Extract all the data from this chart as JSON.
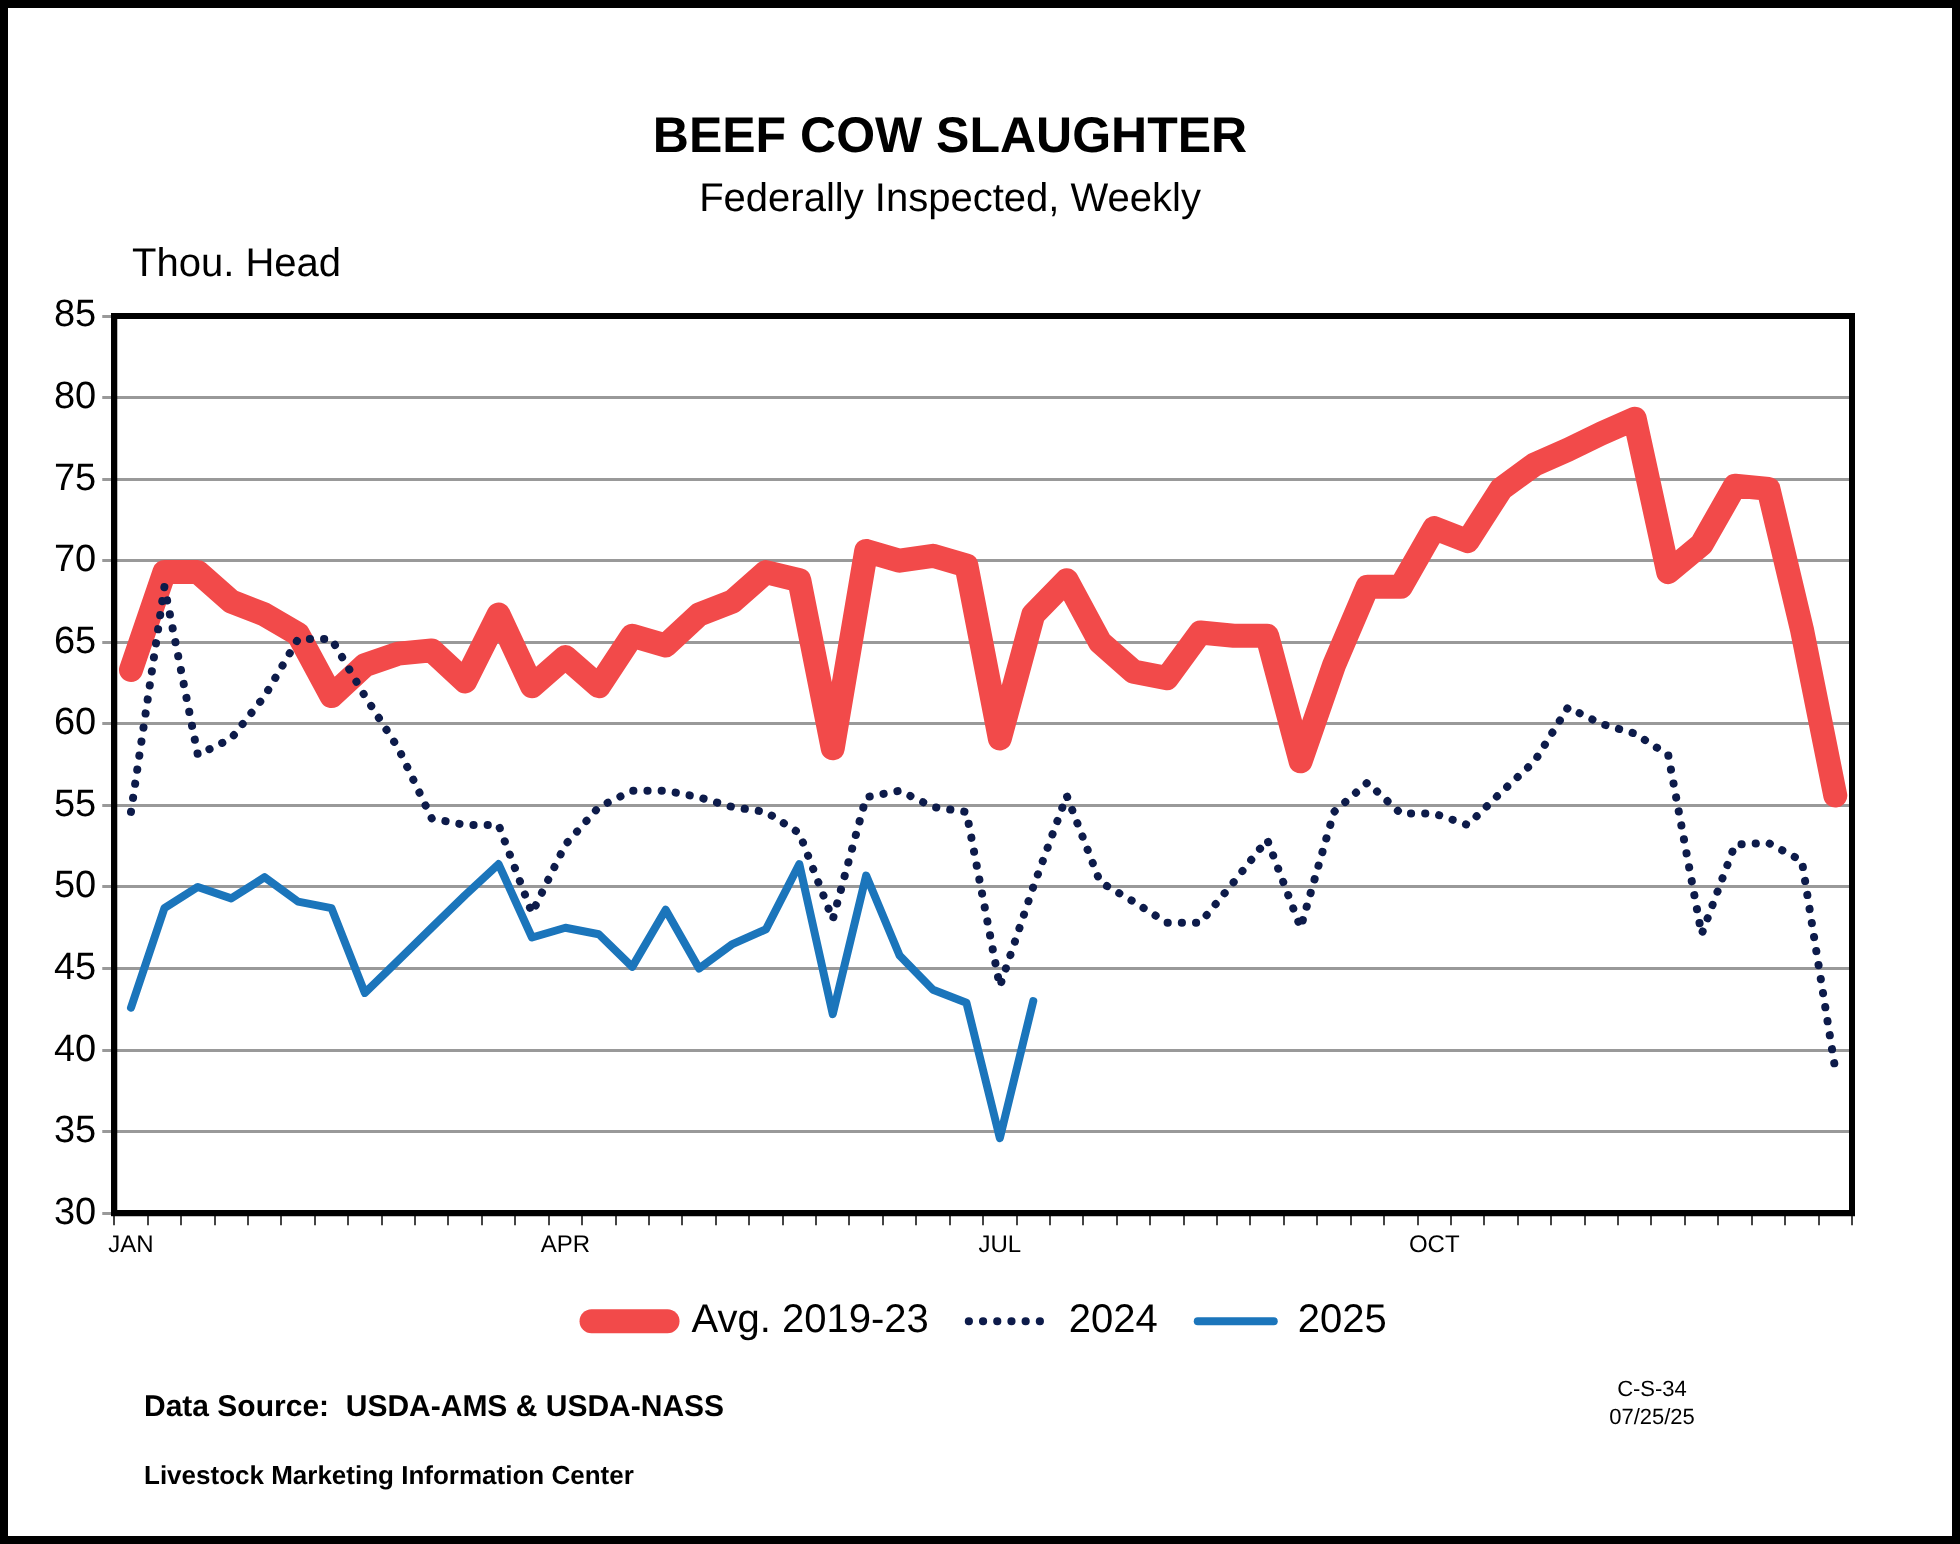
{
  "chart_data": {
    "type": "line",
    "title": "BEEF COW SLAUGHTER",
    "subtitle": "Federally Inspected, Weekly",
    "ylabel": "Thou. Head",
    "categories": [
      "JAN",
      null,
      null,
      null,
      null,
      null,
      null,
      null,
      null,
      null,
      null,
      null,
      null,
      "APR",
      null,
      null,
      null,
      null,
      null,
      null,
      null,
      null,
      null,
      null,
      null,
      null,
      "JUL",
      null,
      null,
      null,
      null,
      null,
      null,
      null,
      null,
      null,
      null,
      null,
      null,
      "OCT",
      null,
      null,
      null,
      null,
      null,
      null,
      null,
      null,
      null,
      null,
      null,
      null
    ],
    "series": [
      {
        "name": "Avg. 2019-23",
        "color": "#f24a4a",
        "line_style": "solid",
        "values": [
          63.3,
          69.3,
          69.3,
          67.5,
          66.7,
          65.5,
          61.7,
          63.6,
          64.3,
          64.5,
          62.6,
          66.7,
          62.3,
          64.1,
          62.3,
          65.4,
          64.8,
          66.7,
          67.5,
          69.3,
          68.8,
          58.5,
          70.6,
          70.0,
          70.3,
          69.7,
          59.1,
          66.7,
          68.8,
          65.0,
          63.2,
          62.8,
          65.6,
          65.4,
          65.4,
          57.7,
          63.6,
          68.4,
          68.4,
          72.0,
          71.2,
          74.4,
          75.9,
          76.8,
          77.8,
          78.7,
          69.3,
          71.0,
          74.6,
          74.4,
          65.8,
          55.6
        ]
      },
      {
        "name": "2024",
        "color": "#0d1b4a",
        "line_style": "dotted",
        "values": [
          54.6,
          68.4,
          58.1,
          59.1,
          61.7,
          65.2,
          65.2,
          61.7,
          58.5,
          54.2,
          53.8,
          53.8,
          48.4,
          52.6,
          54.9,
          55.9,
          55.9,
          55.5,
          54.9,
          54.6,
          53.3,
          48.0,
          55.5,
          55.9,
          54.9,
          54.6,
          43.9,
          50.0,
          55.6,
          50.3,
          49.1,
          47.8,
          47.8,
          50.3,
          52.9,
          47.5,
          54.6,
          56.4,
          54.5,
          54.5,
          53.8,
          55.8,
          57.7,
          61.0,
          60.0,
          59.4,
          58.1,
          47.1,
          52.6,
          52.7,
          51.6,
          38.8
        ]
      },
      {
        "name": "2025",
        "color": "#1b75bb",
        "line_style": "solid",
        "values": [
          42.6,
          48.7,
          50.0,
          49.3,
          50.6,
          49.1,
          48.7,
          43.5,
          45.5,
          47.5,
          49.5,
          51.4,
          46.9,
          47.5,
          47.1,
          45.1,
          48.6,
          45.0,
          46.5,
          47.4,
          51.4,
          42.2,
          50.7,
          45.8,
          43.7,
          42.9,
          34.6,
          43.0,
          null,
          null,
          null,
          null,
          null,
          null,
          null,
          null,
          null,
          null,
          null,
          null,
          null,
          null,
          null,
          null,
          null,
          null,
          null,
          null,
          null,
          null,
          null,
          null
        ]
      }
    ],
    "ylim": [
      30,
      85
    ],
    "yticks": [
      30,
      35,
      40,
      45,
      50,
      55,
      60,
      65,
      70,
      75,
      80,
      85
    ],
    "grid": "y",
    "legend": "bottom",
    "marker": "none",
    "annotations": [
      "Data Source:  USDA-AMS & USDA-NASS",
      "Livestock Marketing Information Center",
      "C-S-34",
      "07/25/25"
    ]
  }
}
